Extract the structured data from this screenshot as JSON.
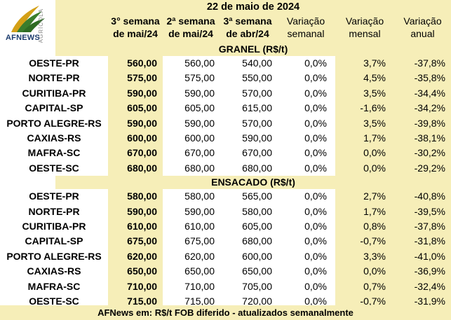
{
  "logo": {
    "brand": "AFNEWS",
    "vertical_text": "AGRÍCOLA"
  },
  "title": "22 de maio de 2024",
  "headers": {
    "week3": [
      "3° semana",
      "de mai/24"
    ],
    "week2": [
      "2ª semana",
      "de mai/24"
    ],
    "week3apr": [
      "3ª semana",
      "de abr/24"
    ],
    "var_sem": [
      "Variação",
      "semanal"
    ],
    "var_men": [
      "Variação",
      "mensal"
    ],
    "var_anu": [
      "Variação",
      "anual"
    ]
  },
  "sections": [
    {
      "title": "GRANEL (R$/t)",
      "rows": [
        {
          "name": "OESTE-PR",
          "c1": "560,00",
          "c2": "560,00",
          "c3": "540,00",
          "c4": "0,0%",
          "c5": "3,7%",
          "c6": "-37,8%"
        },
        {
          "name": "NORTE-PR",
          "c1": "575,00",
          "c2": "575,00",
          "c3": "550,00",
          "c4": "0,0%",
          "c5": "4,5%",
          "c6": "-35,8%"
        },
        {
          "name": "CURITIBA-PR",
          "c1": "590,00",
          "c2": "590,00",
          "c3": "570,00",
          "c4": "0,0%",
          "c5": "3,5%",
          "c6": "-34,4%"
        },
        {
          "name": "CAPITAL-SP",
          "c1": "605,00",
          "c2": "605,00",
          "c3": "615,00",
          "c4": "0,0%",
          "c5": "-1,6%",
          "c6": "-34,2%"
        },
        {
          "name": "PORTO ALEGRE-RS",
          "c1": "590,00",
          "c2": "590,00",
          "c3": "570,00",
          "c4": "0,0%",
          "c5": "3,5%",
          "c6": "-39,8%"
        },
        {
          "name": "CAXIAS-RS",
          "c1": "600,00",
          "c2": "600,00",
          "c3": "590,00",
          "c4": "0,0%",
          "c5": "1,7%",
          "c6": "-38,1%"
        },
        {
          "name": "MAFRA-SC",
          "c1": "670,00",
          "c2": "670,00",
          "c3": "670,00",
          "c4": "0,0%",
          "c5": "0,0%",
          "c6": "-30,2%"
        },
        {
          "name": "OESTE-SC",
          "c1": "680,00",
          "c2": "680,00",
          "c3": "680,00",
          "c4": "0,0%",
          "c5": "0,0%",
          "c6": "-29,2%"
        }
      ]
    },
    {
      "title": "ENSACADO (R$/t)",
      "rows": [
        {
          "name": "OESTE-PR",
          "c1": "580,00",
          "c2": "580,00",
          "c3": "565,00",
          "c4": "0,0%",
          "c5": "2,7%",
          "c6": "-40,8%"
        },
        {
          "name": "NORTE-PR",
          "c1": "590,00",
          "c2": "590,00",
          "c3": "580,00",
          "c4": "0,0%",
          "c5": "1,7%",
          "c6": "-39,5%"
        },
        {
          "name": "CURITIBA-PR",
          "c1": "610,00",
          "c2": "610,00",
          "c3": "605,00",
          "c4": "0,0%",
          "c5": "0,8%",
          "c6": "-37,8%"
        },
        {
          "name": "CAPITAL-SP",
          "c1": "675,00",
          "c2": "675,00",
          "c3": "680,00",
          "c4": "0,0%",
          "c5": "-0,7%",
          "c6": "-31,8%"
        },
        {
          "name": "PORTO ALEGRE-RS",
          "c1": "620,00",
          "c2": "620,00",
          "c3": "600,00",
          "c4": "0,0%",
          "c5": "3,3%",
          "c6": "-41,0%"
        },
        {
          "name": "CAXIAS-RS",
          "c1": "650,00",
          "c2": "650,00",
          "c3": "650,00",
          "c4": "0,0%",
          "c5": "0,0%",
          "c6": "-36,9%"
        },
        {
          "name": "MAFRA-SC",
          "c1": "710,00",
          "c2": "710,00",
          "c3": "705,00",
          "c4": "0,0%",
          "c5": "0,7%",
          "c6": "-32,4%"
        },
        {
          "name": "OESTE-SC",
          "c1": "715,00",
          "c2": "715,00",
          "c3": "720,00",
          "c4": "0,0%",
          "c5": "-0,7%",
          "c6": "-31,9%"
        }
      ]
    }
  ],
  "footer": "AFNews em: R$/t FOB diferido - atualizados semanalmente",
  "colors": {
    "band": "#f6eeb8",
    "brand_blue": "#1d3d6e",
    "leaf_green": "#3a7d2c",
    "leaf_gold": "#d4a017"
  }
}
